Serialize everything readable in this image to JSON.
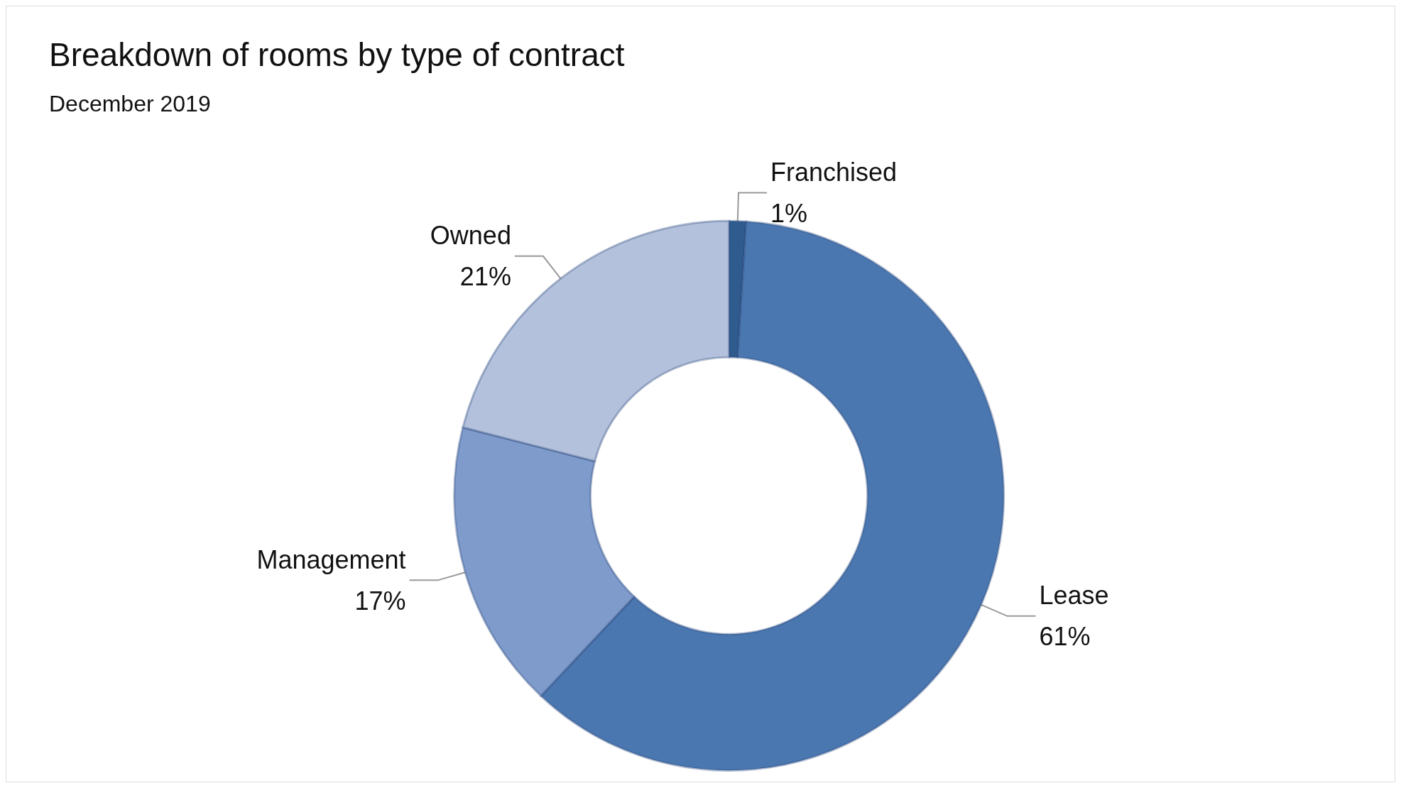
{
  "chart_data": {
    "type": "donut",
    "title": "Breakdown of rooms by type of contract",
    "subtitle": "December 2019",
    "categories": [
      "Franchised",
      "Lease",
      "Management",
      "Owned"
    ],
    "values": [
      1,
      61,
      17,
      21
    ],
    "colors": [
      "#2f5b8f",
      "#4a77b0",
      "#7f9bcb",
      "#b3c1dc"
    ],
    "value_labels": [
      "1%",
      "61%",
      "17%",
      "21%"
    ],
    "legend": false
  }
}
